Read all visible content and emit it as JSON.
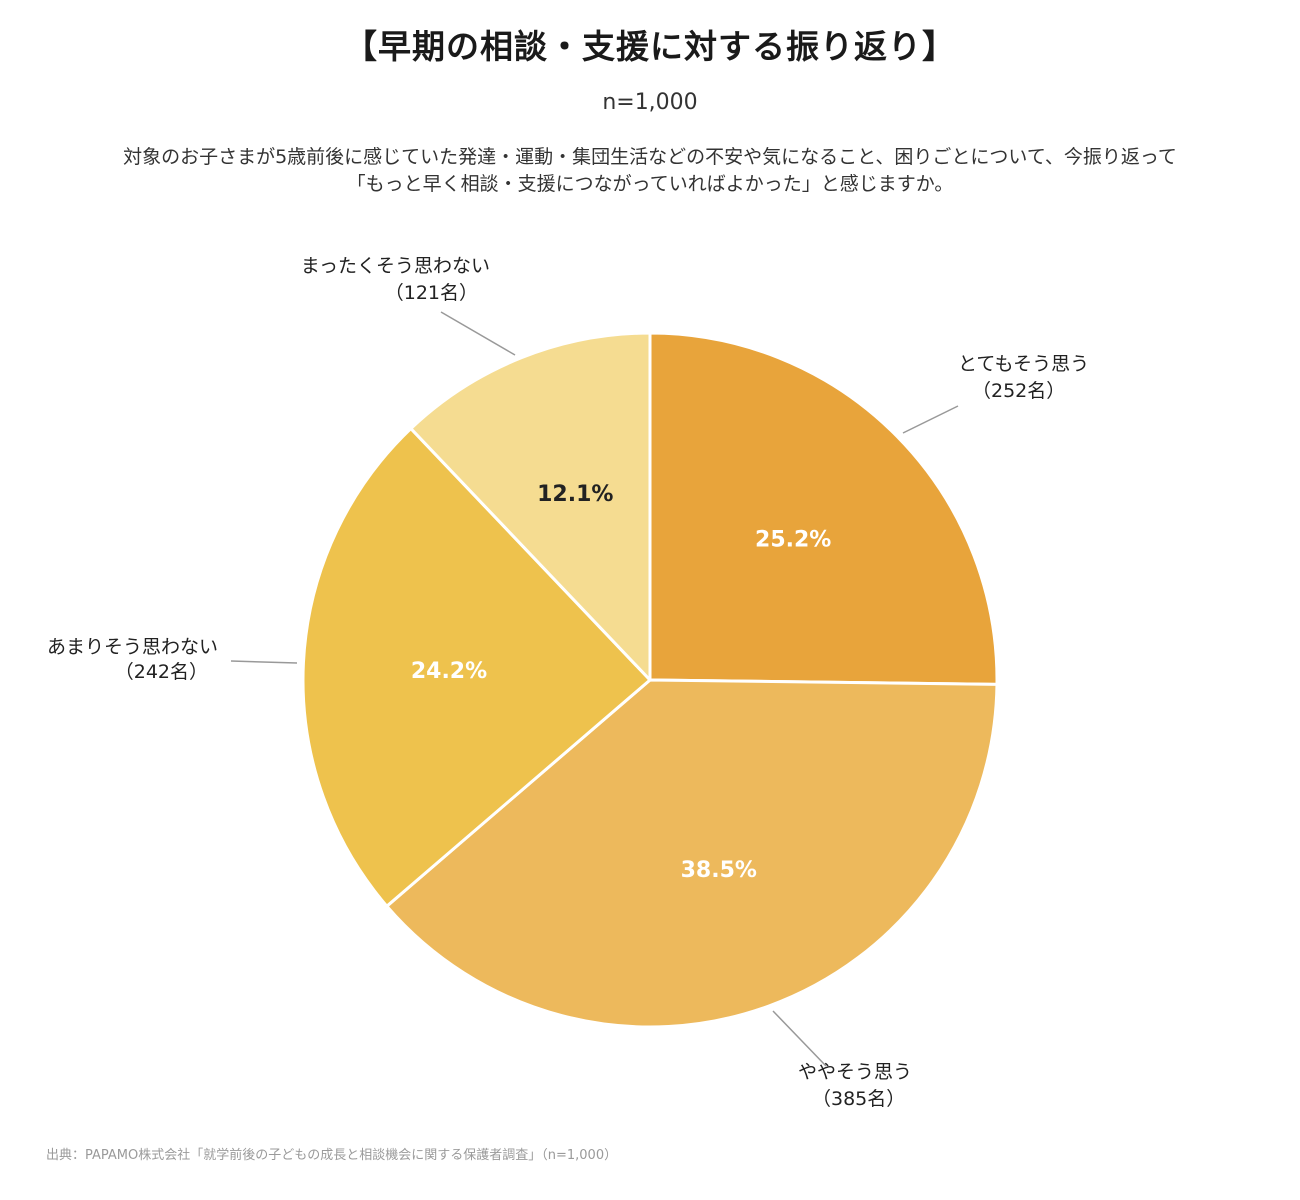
{
  "title": "【早期の相談・支援に対する振り返り】",
  "sample_size": "n=1,000",
  "question": [
    "対象のお子さまが5歳前後に感じていた発達・運動・集団生活などの不安や気になること、困りごとについて、今振り返って",
    "「もっと早く相談・支援につながっていればよかった」と感じますか。"
  ],
  "source": "出典：PAPAMO株式会社「就学前後の子どもの成長と相談機会に関する保護者調査」（n=1,000）",
  "chart_data": {
    "type": "pie",
    "title": "【早期の相談・支援に対する振り返り】",
    "subtitle": "n=1,000",
    "total": 1000,
    "start": "12 o'clock",
    "direction": "clockwise",
    "slices": [
      {
        "label": "とてもそう思う",
        "count": 252,
        "count_label": "（252名）",
        "percent": 25.2,
        "percent_label": "25.2%",
        "color": "#E8A43B",
        "pct_text_color": "#ffffff"
      },
      {
        "label": "ややそう思う",
        "count": 385,
        "count_label": "（385名）",
        "percent": 38.5,
        "percent_label": "38.5%",
        "color": "#EDB95C",
        "pct_text_color": "#ffffff"
      },
      {
        "label": "あまりそう思わない",
        "count": 242,
        "count_label": "（242名）",
        "percent": 24.2,
        "percent_label": "24.2%",
        "color": "#EEC24D",
        "pct_text_color": "#ffffff"
      },
      {
        "label": "まったくそう思わない",
        "count": 121,
        "count_label": "（121名）",
        "percent": 12.1,
        "percent_label": "12.1%",
        "color": "#F5DC91",
        "pct_text_color": "#222222"
      }
    ]
  }
}
